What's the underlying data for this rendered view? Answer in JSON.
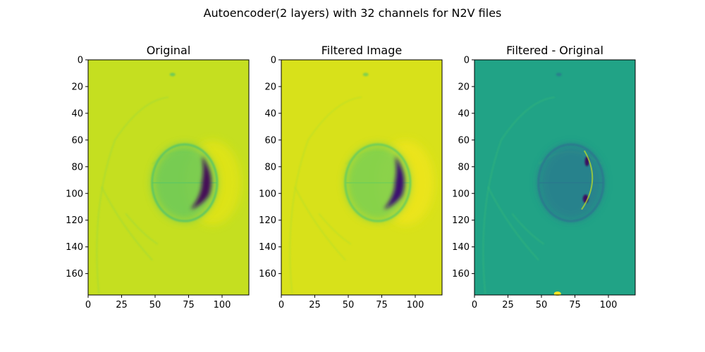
{
  "figure": {
    "suptitle": "Autoencoder(2 layers) with 32 channels for N2V files"
  },
  "chart_data": [
    {
      "type": "heatmap",
      "title": "Original",
      "xlim": [
        0,
        120
      ],
      "ylim": [
        176,
        0
      ],
      "xticks": [
        0,
        25,
        50,
        75,
        100
      ],
      "yticks": [
        0,
        20,
        40,
        60,
        80,
        100,
        120,
        140,
        160
      ],
      "colormap": "viridis",
      "background_color": "#c5df20",
      "features": [
        {
          "name": "ring",
          "center": [
            72,
            92
          ],
          "radius": 22,
          "color": "#5dc663"
        },
        {
          "name": "dark-crescent",
          "x": 88,
          "y": 92,
          "color": "#440d56"
        },
        {
          "name": "bright-halo",
          "x": 93,
          "y": 92,
          "color": "#e3e418"
        },
        {
          "name": "arc-lines",
          "color": "#9dd93b"
        }
      ]
    },
    {
      "type": "heatmap",
      "title": "Filtered Image",
      "xlim": [
        0,
        120
      ],
      "ylim": [
        176,
        0
      ],
      "xticks": [
        0,
        25,
        50,
        75,
        100
      ],
      "yticks": [
        0,
        20,
        40,
        60,
        80,
        100,
        120,
        140,
        160
      ],
      "colormap": "viridis",
      "background_color": "#d8e11a",
      "features": [
        {
          "name": "ring",
          "center": [
            72,
            92
          ],
          "radius": 22,
          "color": "#6ccd5a"
        },
        {
          "name": "dark-crescent",
          "x": 88,
          "y": 92,
          "color": "#3b0f70"
        },
        {
          "name": "bright-halo",
          "x": 93,
          "y": 92,
          "color": "#f0e51c"
        },
        {
          "name": "arc-lines",
          "color": "#b5de2b"
        }
      ]
    },
    {
      "type": "heatmap",
      "title": "Filtered - Original",
      "xlim": [
        0,
        120
      ],
      "ylim": [
        176,
        0
      ],
      "xticks": [
        0,
        25,
        50,
        75,
        100
      ],
      "yticks": [
        0,
        20,
        40,
        60,
        80,
        100,
        120,
        140,
        160
      ],
      "colormap": "viridis",
      "background_color": "#21a386",
      "features": [
        {
          "name": "ring",
          "center": [
            72,
            92
          ],
          "radius": 22,
          "color": "#2a788e"
        },
        {
          "name": "dark-spots",
          "x": 83,
          "y": 104,
          "color": "#3e0f5e"
        },
        {
          "name": "bright-spots",
          "x": 62,
          "y": 175,
          "color": "#fde725"
        },
        {
          "name": "arc-lines",
          "color": "#35b779"
        }
      ]
    }
  ]
}
